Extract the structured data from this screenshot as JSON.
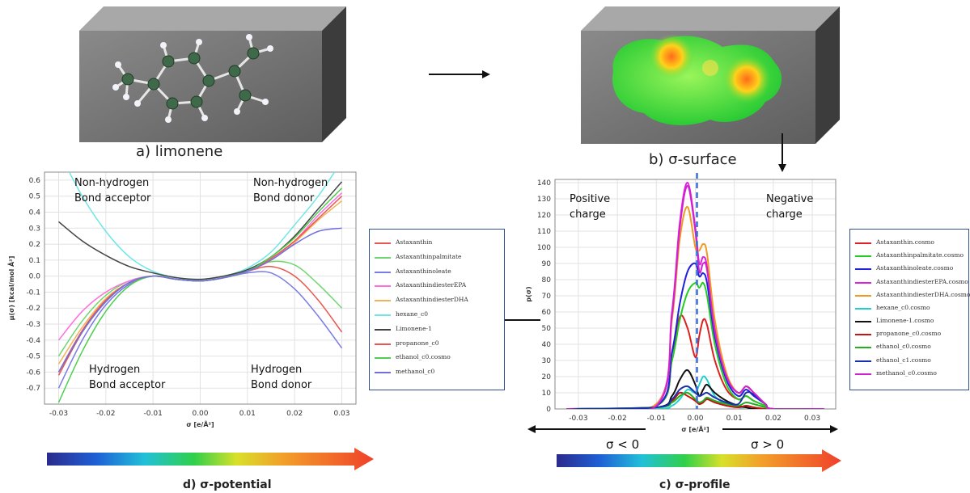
{
  "captions": {
    "a": "a) limonene",
    "b": "b) σ-surface",
    "c": "c) σ-profile",
    "d": "d) σ-potential"
  },
  "annotations": {
    "potential": {
      "nonhb_acceptor": [
        "Non-hydrogen",
        "Bond acceptor"
      ],
      "nonhb_donor": [
        "Non-hydrogen",
        "Bond donor"
      ],
      "hb_acceptor": [
        "Hydrogen",
        "Bond acceptor"
      ],
      "hb_donor": [
        "Hydrogen",
        "Bond donor"
      ]
    },
    "profile": {
      "positive": [
        "Positive",
        "charge"
      ],
      "negative": [
        "Negative",
        "charge"
      ],
      "sigma_lt": "σ < 0",
      "sigma_gt": "σ > 0"
    }
  },
  "colors": {
    "series": [
      "#e8574f",
      "#6fd66f",
      "#7b7be8",
      "#ff6fe0",
      "#f2b25a",
      "#6fe6e6",
      "#444444",
      "#e8574f",
      "#4fcf4f",
      "#6f6fe0"
    ],
    "profile_series": [
      "#e02020",
      "#22cc22",
      "#2020e0",
      "#e020e0",
      "#f29a20",
      "#20d0d0",
      "#111111",
      "#cc1111",
      "#20b020",
      "#1a2fb0",
      "#d020d0"
    ],
    "legend_border": "#2f4f8f",
    "box_face": "#6e6e6e",
    "box_top": "#9a9a9a",
    "box_side": "#4a4a4a"
  },
  "chart_data": [
    {
      "type": "line",
      "xlabel": "σ [e/Å²]",
      "ylabel": "μ(σ) [kcal/mol Å²]",
      "xlim": [
        -0.033,
        0.033
      ],
      "ylim": [
        -0.8,
        0.65
      ],
      "xticks": [
        "-0.03",
        "-0.02",
        "-0.01",
        "0.00",
        "0.01",
        "0.02",
        "0.03"
      ],
      "yticks": [
        "0.6",
        "0.5",
        "0.4",
        "0.3",
        "0.2",
        "0.1",
        "0.0",
        "-0.1",
        "-0.2",
        "-0.3",
        "-0.4",
        "-0.5",
        "-0.6",
        "-0.7"
      ],
      "grid": true,
      "legend_position": "right",
      "x": [
        -0.03,
        -0.025,
        -0.02,
        -0.015,
        -0.01,
        -0.005,
        0.0,
        0.005,
        0.01,
        0.015,
        0.02,
        0.025,
        0.03
      ],
      "series": [
        {
          "name": "Astaxanthin",
          "values": [
            -0.62,
            -0.35,
            -0.15,
            -0.04,
            0.0,
            -0.02,
            -0.03,
            -0.01,
            0.03,
            0.06,
            0.0,
            -0.15,
            -0.35
          ]
        },
        {
          "name": "Astaxanthinpalmitate",
          "values": [
            -0.5,
            -0.28,
            -0.12,
            -0.03,
            0.0,
            -0.02,
            -0.03,
            -0.01,
            0.04,
            0.09,
            0.07,
            -0.05,
            -0.2
          ]
        },
        {
          "name": "Astaxanthinoleate",
          "values": [
            -0.7,
            -0.4,
            -0.18,
            -0.05,
            0.0,
            -0.02,
            -0.03,
            -0.01,
            0.02,
            0.02,
            -0.08,
            -0.25,
            -0.45
          ]
        },
        {
          "name": "AstaxanthindiesterEPA",
          "values": [
            -0.4,
            -0.22,
            -0.1,
            -0.03,
            0.0,
            -0.02,
            -0.03,
            -0.01,
            0.03,
            0.1,
            0.22,
            0.38,
            0.52
          ]
        },
        {
          "name": "AstaxanthindiesterDHA",
          "values": [
            -0.55,
            -0.32,
            -0.14,
            -0.04,
            0.0,
            -0.02,
            -0.03,
            -0.01,
            0.03,
            0.1,
            0.21,
            0.35,
            0.47
          ]
        },
        {
          "name": "hexane_c0",
          "values": [
            0.78,
            0.5,
            0.28,
            0.12,
            0.03,
            -0.01,
            -0.02,
            0.0,
            0.05,
            0.15,
            0.32,
            0.5,
            0.72
          ]
        },
        {
          "name": "Limonene-1",
          "values": [
            0.34,
            0.22,
            0.13,
            0.06,
            0.02,
            -0.01,
            -0.02,
            0.0,
            0.04,
            0.12,
            0.25,
            0.42,
            0.59
          ]
        },
        {
          "name": "propanone_c0",
          "values": [
            -0.6,
            -0.34,
            -0.15,
            -0.04,
            0.0,
            -0.02,
            -0.03,
            -0.01,
            0.03,
            0.11,
            0.22,
            0.36,
            0.5
          ]
        },
        {
          "name": "ethanol_c0.cosmo",
          "values": [
            -0.79,
            -0.47,
            -0.22,
            -0.06,
            0.0,
            -0.02,
            -0.03,
            -0.01,
            0.03,
            0.12,
            0.24,
            0.4,
            0.55
          ]
        },
        {
          "name": "methanol_c0",
          "values": [
            -0.6,
            -0.35,
            -0.16,
            -0.04,
            0.0,
            -0.02,
            -0.03,
            -0.01,
            0.03,
            0.1,
            0.2,
            0.28,
            0.3
          ]
        }
      ]
    },
    {
      "type": "line",
      "xlabel": "σ [e/Å²]",
      "ylabel": "p(σ)",
      "xlim": [
        -0.036,
        0.036
      ],
      "ylim": [
        0,
        142
      ],
      "xticks": [
        "-0.03",
        "-0.02",
        "-0.01",
        "0.00",
        "0.01",
        "0.02",
        "0.03"
      ],
      "yticks": [
        "140",
        "130",
        "120",
        "110",
        "100",
        "90",
        "80",
        "70",
        "60",
        "50",
        "40",
        "30",
        "20",
        "10",
        "0"
      ],
      "grid": true,
      "legend_position": "right",
      "x": [
        -0.033,
        -0.01,
        -0.006,
        -0.004,
        -0.002,
        0.0,
        0.001,
        0.002,
        0.003,
        0.005,
        0.008,
        0.011,
        0.013,
        0.015,
        0.018,
        0.02,
        0.033
      ],
      "series": [
        {
          "name": "Astaxanthin.cosmo",
          "values": [
            0,
            2,
            30,
            57,
            50,
            32,
            45,
            55,
            52,
            30,
            12,
            6,
            8,
            5,
            2,
            0,
            0
          ]
        },
        {
          "name": "Astaxanthinpalmitate.cosmo",
          "values": [
            0,
            2,
            30,
            55,
            72,
            78,
            75,
            78,
            70,
            40,
            15,
            6,
            8,
            5,
            2,
            0,
            0
          ]
        },
        {
          "name": "Astaxanthinoleate.cosmo",
          "values": [
            0,
            2,
            35,
            65,
            85,
            90,
            82,
            84,
            78,
            45,
            18,
            8,
            12,
            8,
            3,
            0,
            0
          ]
        },
        {
          "name": "AstaxanthindiesterEPA.cosmo",
          "values": [
            0,
            3,
            60,
            115,
            140,
            112,
            90,
            94,
            88,
            50,
            20,
            10,
            14,
            10,
            3,
            0,
            0
          ]
        },
        {
          "name": "AstaxanthindiesterDHA.cosmo",
          "values": [
            0,
            3,
            55,
            105,
            125,
            100,
            98,
            102,
            96,
            55,
            22,
            10,
            14,
            10,
            3,
            0,
            0
          ]
        },
        {
          "name": "hexane_c0.cosmo",
          "values": [
            0,
            0,
            2,
            6,
            12,
            10,
            15,
            20,
            18,
            8,
            3,
            1,
            1,
            0,
            0,
            0,
            0
          ]
        },
        {
          "name": "Limonene-1.cosmo",
          "values": [
            0,
            1,
            8,
            18,
            24,
            15,
            8,
            12,
            15,
            10,
            5,
            2,
            1,
            0,
            0,
            0,
            0
          ]
        },
        {
          "name": "propanone_c0.cosmo",
          "values": [
            0,
            1,
            5,
            10,
            8,
            5,
            3,
            4,
            6,
            4,
            2,
            1,
            2,
            1,
            0,
            0,
            0
          ]
        },
        {
          "name": "ethanol_c0.cosmo",
          "values": [
            0,
            1,
            4,
            8,
            10,
            6,
            4,
            5,
            7,
            5,
            3,
            2,
            4,
            3,
            1,
            0,
            0
          ]
        },
        {
          "name": "ethanol_c1.cosmo",
          "values": [
            0,
            1,
            6,
            12,
            14,
            10,
            8,
            9,
            10,
            7,
            4,
            3,
            10,
            9,
            3,
            0,
            0
          ]
        },
        {
          "name": "methanol_c0.cosmo",
          "values": [
            0,
            2,
            58,
            112,
            138,
            110,
            85,
            90,
            86,
            48,
            20,
            10,
            14,
            10,
            3,
            0,
            0
          ]
        }
      ]
    }
  ]
}
